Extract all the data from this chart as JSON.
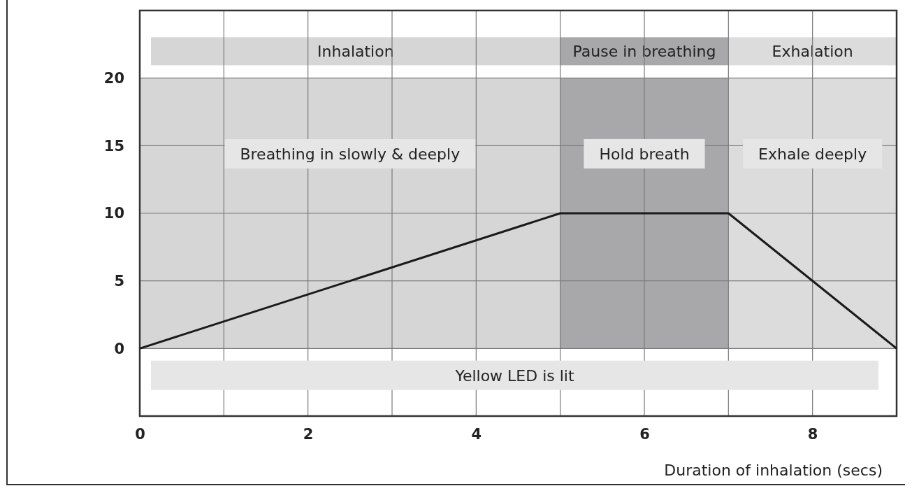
{
  "chart_data": {
    "type": "line",
    "xlabel": "Duration of inhalation (secs)",
    "series": [
      {
        "color": "#1a1a1a",
        "x": [
          0,
          5,
          7,
          9
        ],
        "values": [
          0,
          10,
          10,
          0
        ]
      }
    ],
    "xlim": [
      0,
      9
    ],
    "ylim": [
      -5,
      25
    ],
    "xticks": [
      0,
      {
        "value": 1,
        "label": null
      },
      2,
      {
        "value": 3,
        "label": null
      },
      4,
      {
        "value": 5,
        "label": null
      },
      6,
      {
        "value": 7,
        "label": null
      },
      8
    ],
    "yticks": [
      0,
      5,
      10,
      15,
      20
    ],
    "grid": true,
    "marker": "none",
    "line_style": "solid",
    "bands": [
      {
        "axis": "x",
        "from": 0,
        "to": 5,
        "label": "Inhalation",
        "color": "#d6d6d6"
      },
      {
        "axis": "x",
        "from": 5,
        "to": 7,
        "label": "Pause in breathing",
        "color": "#a8a8aa"
      },
      {
        "axis": "x",
        "from": 7,
        "to": 9,
        "label": "Exhalation",
        "color": "#dcdcdc"
      }
    ],
    "annotations": [
      "Breathing in slowly & deeply",
      "Hold breath",
      "Exhale deeply",
      "Yellow LED is lit"
    ]
  }
}
